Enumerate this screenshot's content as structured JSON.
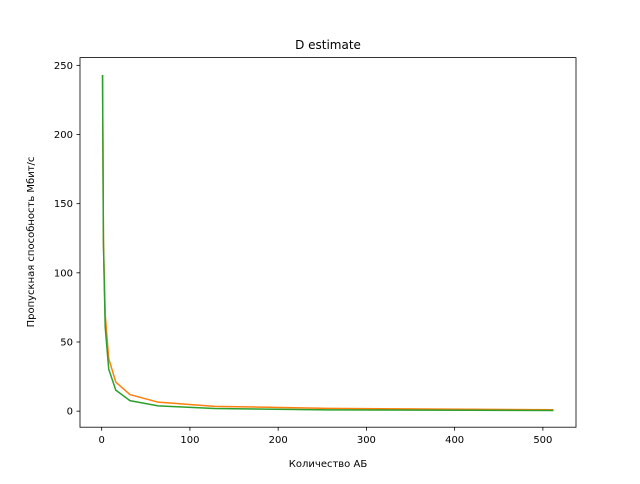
{
  "chart_data": {
    "type": "line",
    "title": "D estimate",
    "x_label": "Количество АБ",
    "y_label": "Пропускная способность Мбит/с",
    "x": [
      1,
      2,
      4,
      8,
      16,
      32,
      64,
      128,
      256,
      512
    ],
    "series": [
      {
        "color": "#ff7f0e",
        "values": [
          243,
          122,
          70,
          38,
          21,
          12,
          6.5,
          3.5,
          2,
          1
        ]
      },
      {
        "color": "#2ca02c",
        "values": [
          243,
          121.5,
          60.8,
          30.4,
          15.2,
          7.6,
          3.8,
          1.9,
          0.95,
          0.47
        ]
      }
    ],
    "xlim": [
      -24.55,
      537.55
    ],
    "xticks": [
      0,
      100,
      200,
      300,
      400,
      500
    ],
    "ylim": [
      -11.6,
      255.6
    ],
    "yticks": [
      0,
      50,
      100,
      150,
      200,
      250
    ]
  }
}
